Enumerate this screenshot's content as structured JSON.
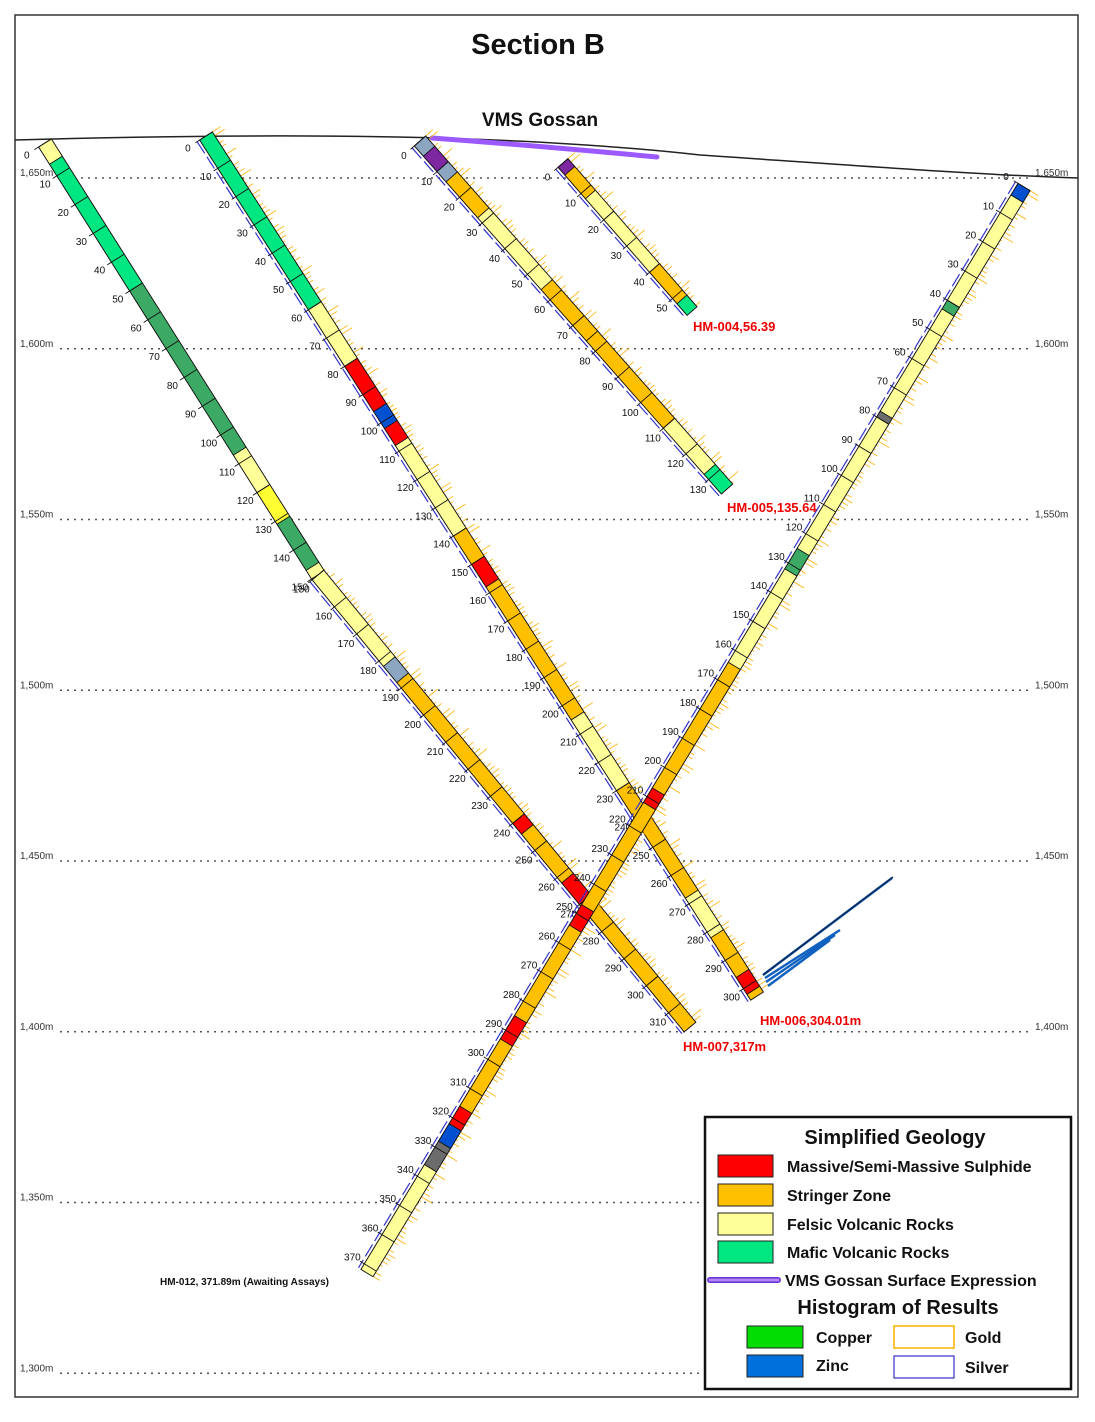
{
  "title": "Section B",
  "gossan_label": "VMS Gossan",
  "elevations": [
    {
      "label": "1,650m",
      "value": 1650
    },
    {
      "label": "1,600m",
      "value": 1600
    },
    {
      "label": "1,550m",
      "value": 1550
    },
    {
      "label": "1,500m",
      "value": 1500
    },
    {
      "label": "1,450m",
      "value": 1450
    },
    {
      "label": "1,400m",
      "value": 1400
    },
    {
      "label": "1,350m",
      "value": 1350
    },
    {
      "label": "1,300m",
      "value": 1300
    }
  ],
  "holes": [
    {
      "id": "hole-a",
      "label": "",
      "depth": 150,
      "tick_step": 10
    },
    {
      "id": "hole-b",
      "label": "HM-007,317m",
      "depth": 317,
      "tick_step": 10
    },
    {
      "id": "hole-c",
      "label": "HM-006,304.01m",
      "depth": 304,
      "tick_step": 10
    },
    {
      "id": "hole-d",
      "label": "HM-005,135.64",
      "depth": 135.64,
      "tick_step": 10
    },
    {
      "id": "hole-e",
      "label": "HM-004,56.39",
      "depth": 56.39,
      "tick_step": 10
    },
    {
      "id": "hole-f",
      "label": "HM-012, 371.89m (Awaiting Assays)",
      "depth": 371.89,
      "tick_step": 10
    }
  ],
  "legend": {
    "geology_title": "Simplified Geology",
    "geology_items": [
      {
        "label": "Massive/Semi-Massive Sulphide",
        "color": "#ff0000"
      },
      {
        "label": "Stringer Zone",
        "color": "#ffc000"
      },
      {
        "label": "Felsic Volcanic Rocks",
        "color": "#ffff99"
      },
      {
        "label": "Mafic Volcanic Rocks",
        "color": "#00e680"
      }
    ],
    "gossan_item": {
      "label": "VMS Gossan Surface Expression",
      "color": "#9b59ff"
    },
    "histogram_title": "Histogram of Results",
    "histogram_items": [
      {
        "label": "Copper",
        "color": "#00dd00",
        "filled": true
      },
      {
        "label": "Gold",
        "color": "#ffb000",
        "filled": false
      },
      {
        "label": "Zinc",
        "color": "#0070dd",
        "filled": true
      },
      {
        "label": "Silver",
        "color": "#3333cc",
        "filled": false
      }
    ]
  }
}
